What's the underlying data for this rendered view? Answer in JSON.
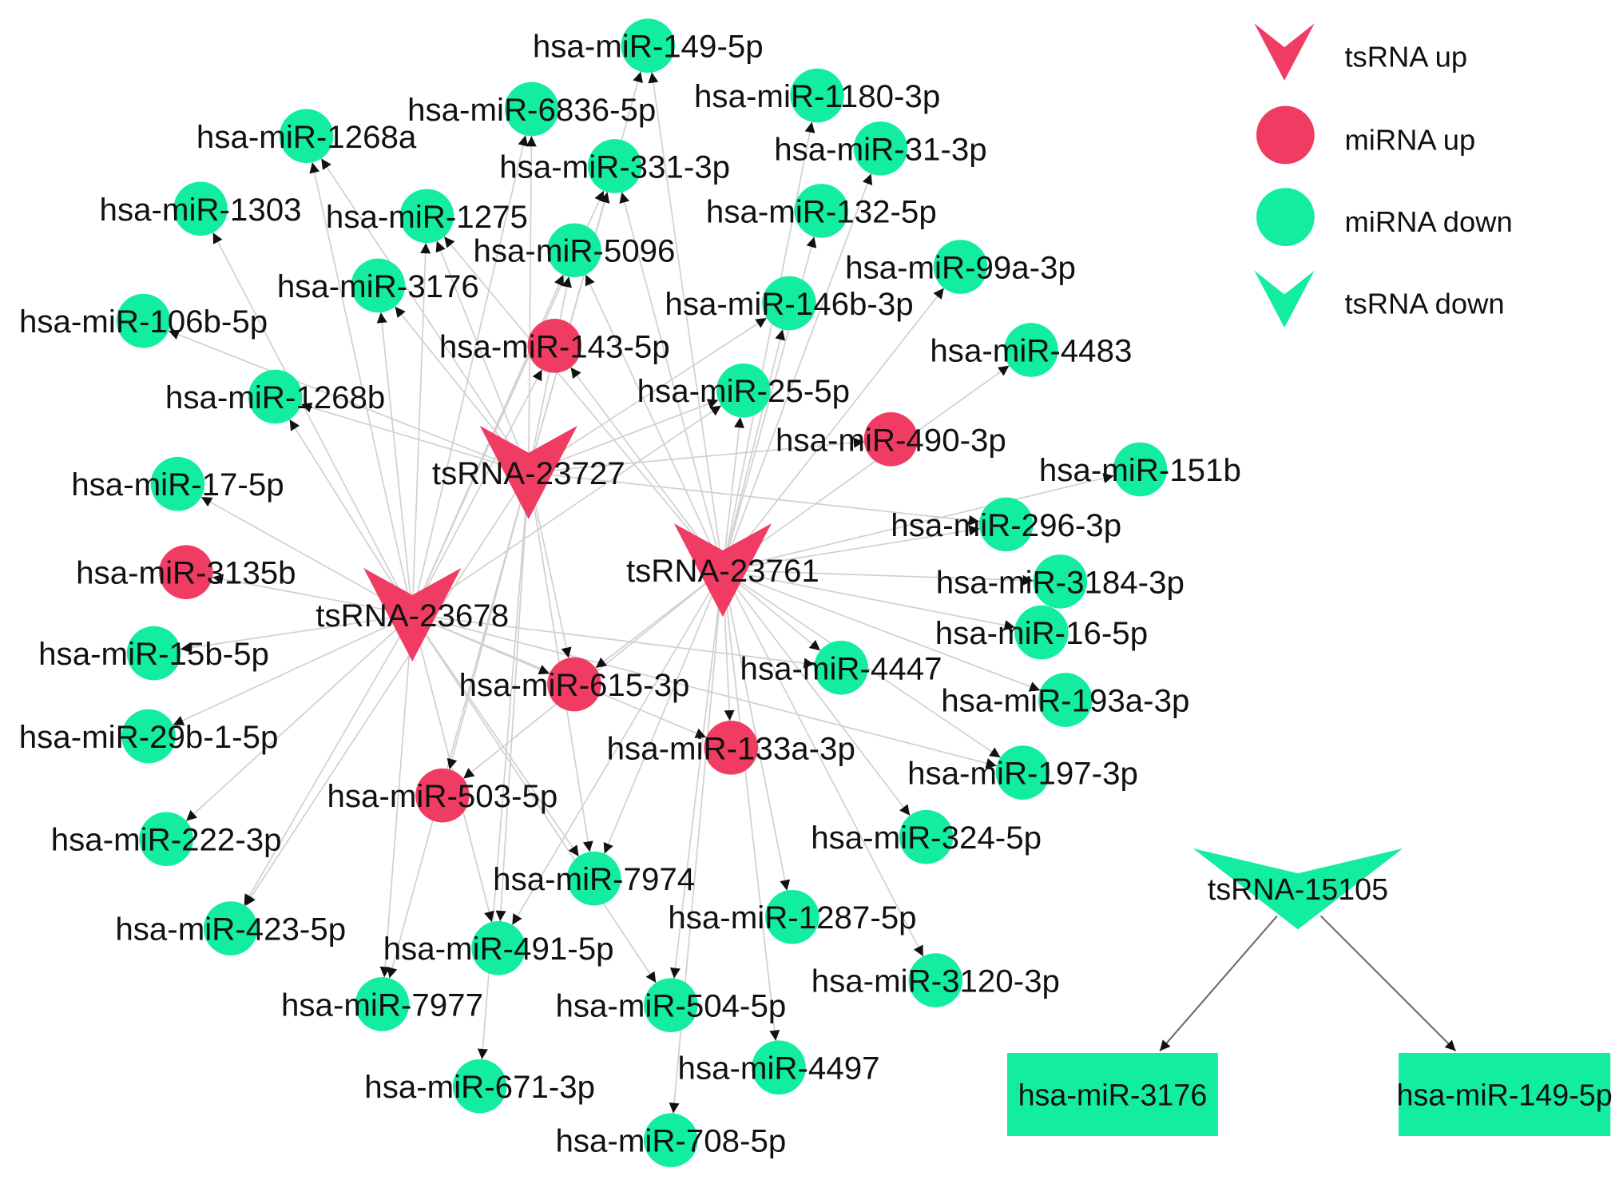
{
  "legend": [
    {
      "label": "tsRNA up",
      "icon": "v-shape-icon",
      "color": "#F03C63"
    },
    {
      "label": "miRNA up",
      "icon": "circle-icon",
      "color": "#F03C63"
    },
    {
      "label": "miRNA down",
      "icon": "circle-icon",
      "color": "#12EDA0"
    },
    {
      "label": "tsRNA down",
      "icon": "v-shape-icon",
      "color": "#12EDA0"
    }
  ],
  "colors": {
    "edge": "#D0D0D0",
    "subnet_edge": "#6A6A6A",
    "arrow": "#111111",
    "label": "#111111"
  },
  "network": {
    "hubs": [
      {
        "label": "tsRNA-23727",
        "cat": 0
      },
      {
        "label": "tsRNA-23761",
        "cat": 0
      },
      {
        "label": "tsRNA-23678",
        "cat": 0
      }
    ],
    "nodes": [
      {
        "label": "hsa-miR-149-5p",
        "cat": 2,
        "from": [
          0,
          1
        ]
      },
      {
        "label": "hsa-miR-6836-5p",
        "cat": 2,
        "from": [
          0,
          2
        ]
      },
      {
        "label": "hsa-miR-1180-3p",
        "cat": 2,
        "from": [
          1
        ]
      },
      {
        "label": "hsa-miR-1268a",
        "cat": 2,
        "from": [
          0,
          2
        ]
      },
      {
        "label": "hsa-miR-331-3p",
        "cat": 2,
        "from": [
          0,
          1,
          2
        ]
      },
      {
        "label": "hsa-miR-31-3p",
        "cat": 2,
        "from": [
          1
        ]
      },
      {
        "label": "hsa-miR-1303",
        "cat": 2,
        "from": [
          2
        ]
      },
      {
        "label": "hsa-miR-1275",
        "cat": 2,
        "from": [
          0,
          1,
          2
        ]
      },
      {
        "label": "hsa-miR-132-5p",
        "cat": 2,
        "from": [
          1
        ]
      },
      {
        "label": "hsa-miR-5096",
        "cat": 2,
        "from": [
          0,
          1,
          2
        ]
      },
      {
        "label": "hsa-miR-99a-3p",
        "cat": 2,
        "from": [
          1
        ]
      },
      {
        "label": "hsa-miR-3176",
        "cat": 2,
        "from": [
          0,
          2
        ]
      },
      {
        "label": "hsa-miR-146b-3p",
        "cat": 2,
        "from": [
          0,
          1
        ]
      },
      {
        "label": "hsa-miR-106b-5p",
        "cat": 2,
        "from": [
          0
        ]
      },
      {
        "label": "hsa-miR-143-5p",
        "cat": 1,
        "from": [
          1,
          2
        ]
      },
      {
        "label": "hsa-miR-4483",
        "cat": 2,
        "from": [
          1
        ]
      },
      {
        "label": "hsa-miR-1268b",
        "cat": 2,
        "from": [
          0,
          2
        ]
      },
      {
        "label": "hsa-miR-25-5p",
        "cat": 2,
        "from": [
          0,
          1,
          2
        ]
      },
      {
        "label": "hsa-miR-490-3p",
        "cat": 1,
        "from": [
          0
        ]
      },
      {
        "label": "hsa-miR-17-5p",
        "cat": 2,
        "from": [
          2
        ]
      },
      {
        "label": "hsa-miR-151b",
        "cat": 2,
        "from": [
          1
        ]
      },
      {
        "label": "hsa-miR-296-3p",
        "cat": 2,
        "from": [
          0,
          1
        ]
      },
      {
        "label": "hsa-miR-3135b",
        "cat": 1,
        "from": [
          2
        ]
      },
      {
        "label": "hsa-miR-3184-3p",
        "cat": 2,
        "from": [
          1
        ]
      },
      {
        "label": "hsa-miR-16-5p",
        "cat": 2,
        "from": [
          1
        ]
      },
      {
        "label": "hsa-miR-15b-5p",
        "cat": 2,
        "from": [
          2
        ]
      },
      {
        "label": "hsa-miR-615-3p",
        "cat": 1,
        "from": [
          0,
          1,
          2
        ]
      },
      {
        "label": "hsa-miR-4447",
        "cat": 2,
        "from": [
          1,
          2
        ]
      },
      {
        "label": "hsa-miR-193a-3p",
        "cat": 2,
        "from": [
          1
        ]
      },
      {
        "label": "hsa-miR-29b-1-5p",
        "cat": 2,
        "from": [
          2
        ]
      },
      {
        "label": "hsa-miR-133a-3p",
        "cat": 1,
        "from": [
          1,
          2
        ]
      },
      {
        "label": "hsa-miR-197-3p",
        "cat": 2,
        "from": [
          1,
          2
        ]
      },
      {
        "label": "hsa-miR-503-5p",
        "cat": 1,
        "from": [
          0,
          1
        ]
      },
      {
        "label": "hsa-miR-222-3p",
        "cat": 2,
        "from": [
          2
        ]
      },
      {
        "label": "hsa-miR-324-5p",
        "cat": 2,
        "from": [
          1
        ]
      },
      {
        "label": "hsa-miR-7974",
        "cat": 2,
        "from": [
          0,
          1,
          2
        ]
      },
      {
        "label": "hsa-miR-1287-5p",
        "cat": 2,
        "from": [
          1
        ]
      },
      {
        "label": "hsa-miR-423-5p",
        "cat": 2,
        "from": [
          0,
          2
        ]
      },
      {
        "label": "hsa-miR-491-5p",
        "cat": 2,
        "from": [
          0,
          1,
          2
        ]
      },
      {
        "label": "hsa-miR-3120-3p",
        "cat": 2,
        "from": [
          1
        ]
      },
      {
        "label": "hsa-miR-7977",
        "cat": 2,
        "from": [
          0,
          2
        ]
      },
      {
        "label": "hsa-miR-504-5p",
        "cat": 2,
        "from": [
          1,
          2
        ]
      },
      {
        "label": "hsa-miR-4497",
        "cat": 2,
        "from": [
          1
        ]
      },
      {
        "label": "hsa-miR-671-3p",
        "cat": 2,
        "from": [
          0
        ]
      },
      {
        "label": "hsa-miR-708-5p",
        "cat": 2,
        "from": [
          1
        ]
      }
    ]
  },
  "subnet": {
    "source": {
      "label": "tsRNA-15105",
      "cat": 3
    },
    "targets": [
      {
        "label": "hsa-miR-3176",
        "cat": 2,
        "icon": "rectangle-icon"
      },
      {
        "label": "hsa-miR-149-5p",
        "cat": 2,
        "icon": "rectangle-icon"
      }
    ]
  }
}
